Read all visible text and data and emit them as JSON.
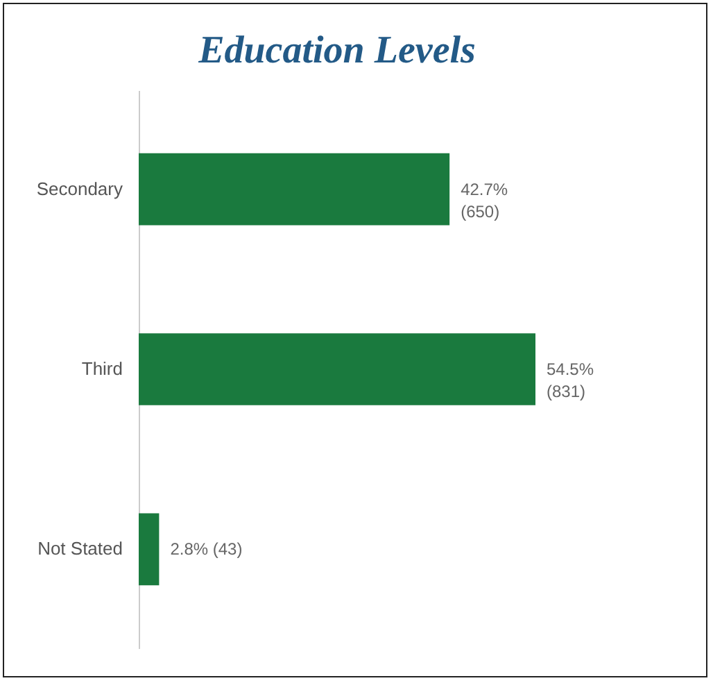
{
  "chart_data": {
    "type": "bar",
    "orientation": "horizontal",
    "title": "Education Levels",
    "categories": [
      "Secondary",
      "Third",
      "Not Stated"
    ],
    "values": [
      42.7,
      54.5,
      2.8
    ],
    "value_labels": [
      "42.7%\n(650)",
      "54.5%\n(831)",
      "2.8% (43)"
    ],
    "color": "#1a7a3e"
  }
}
